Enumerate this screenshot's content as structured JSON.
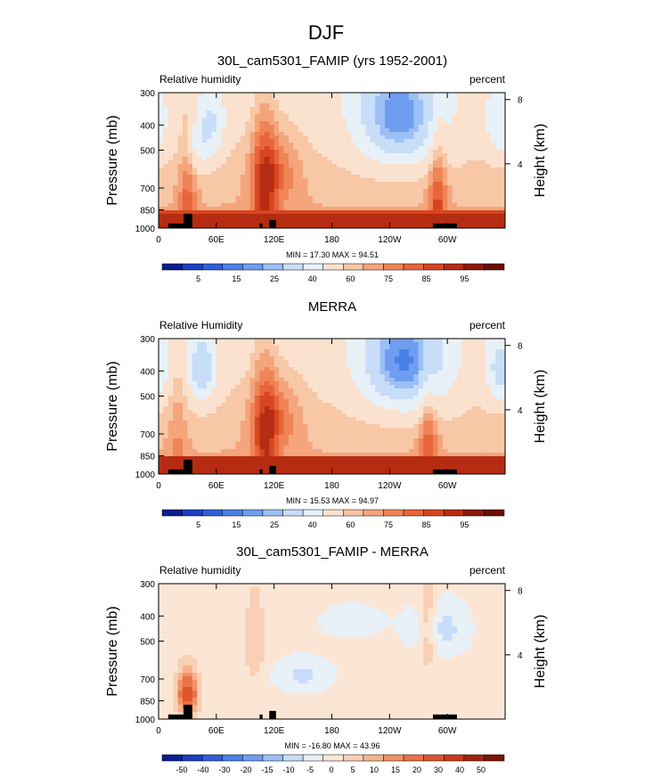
{
  "figure_title": "DJF",
  "colors": {
    "main_palette": [
      "#0a1f8f",
      "#1d3fc2",
      "#2f5fd8",
      "#4a80e6",
      "#6f9ef0",
      "#9cc0f6",
      "#c8ddf8",
      "#e8f0f8",
      "#fbe2cf",
      "#f8c7a6",
      "#f4a57c",
      "#ef8456",
      "#e8653a",
      "#d64620",
      "#b62c12",
      "#8c1a0a",
      "#6a0f06"
    ],
    "diff_palette": [
      "#0a1f8f",
      "#1d3fc2",
      "#2f5fd8",
      "#4a80e6",
      "#6f9ef0",
      "#9cc0f6",
      "#c8ddf8",
      "#e8f0f8",
      "#fbe6d6",
      "#f9d0b4",
      "#f6b28c",
      "#f19366",
      "#ea7246",
      "#de542c",
      "#c63a1a",
      "#a4240e",
      "#7c1408"
    ]
  },
  "chart_data": [
    {
      "type": "heatmap",
      "title": "30L_cam5301_FAMIP (yrs 1952-2001)",
      "left_label": "Relative humidity",
      "right_label": "percent",
      "xlabel": "",
      "ylabel": "Pressure (mb)",
      "y2label": "Height (km)",
      "x_ticks": [
        "0",
        "60E",
        "120E",
        "180",
        "120W",
        "60W"
      ],
      "x_tick_values": [
        0,
        60,
        120,
        180,
        240,
        300
      ],
      "xlim": [
        0,
        360
      ],
      "y_ticks": [
        "300",
        "400",
        "500",
        "700",
        "850",
        "1000"
      ],
      "y_tick_values": [
        300,
        400,
        500,
        700,
        850,
        1000
      ],
      "ylim": [
        1000,
        300
      ],
      "y2_ticks": [
        "8",
        "4"
      ],
      "min_max_label": "MIN =  17.30   MAX =  94.51",
      "min": 17.3,
      "max": 94.51,
      "colorbar_labels": [
        "5",
        "15",
        "25",
        "40",
        "60",
        "75",
        "85",
        "95"
      ],
      "levels": [
        5,
        10,
        15,
        20,
        25,
        30,
        40,
        50,
        60,
        65,
        70,
        75,
        80,
        85,
        90,
        95
      ],
      "palette_key": "main_palette",
      "features": {
        "low_humidity_core": {
          "lon": 250,
          "p": 400,
          "value": 18
        },
        "secondary_dry": [
          {
            "lon": 55,
            "p": 400,
            "value": 40
          },
          {
            "lon": 40,
            "p": 480,
            "value": 45
          },
          {
            "lon": 355,
            "p": 400,
            "value": 40
          }
        ],
        "moist_towers": [
          {
            "lon": 30,
            "value": 82
          },
          {
            "lon": 105,
            "value": 80
          },
          {
            "lon": 115,
            "value": 80
          },
          {
            "lon": 290,
            "value": 88
          }
        ],
        "boundary_layer_value": 88
      }
    },
    {
      "type": "heatmap",
      "title": "MERRA",
      "left_label": "Relative Humidity",
      "right_label": "percent",
      "xlabel": "",
      "ylabel": "Pressure (mb)",
      "y2label": "Height (km)",
      "x_ticks": [
        "0",
        "60E",
        "120E",
        "180",
        "120W",
        "60W"
      ],
      "x_tick_values": [
        0,
        60,
        120,
        180,
        240,
        300
      ],
      "xlim": [
        0,
        360
      ],
      "y_ticks": [
        "300",
        "400",
        "500",
        "700",
        "850",
        "1000"
      ],
      "y_tick_values": [
        300,
        400,
        500,
        700,
        850,
        1000
      ],
      "ylim": [
        1000,
        300
      ],
      "y2_ticks": [
        "8",
        "4"
      ],
      "min_max_label": "MIN =  15.53   MAX =  94.97",
      "min": 15.53,
      "max": 94.97,
      "colorbar_labels": [
        "5",
        "15",
        "25",
        "40",
        "60",
        "75",
        "85",
        "95"
      ],
      "levels": [
        5,
        10,
        15,
        20,
        25,
        30,
        40,
        50,
        60,
        65,
        70,
        75,
        80,
        85,
        90,
        95
      ],
      "palette_key": "main_palette",
      "features": {
        "low_humidity_core": {
          "lon": 255,
          "p": 400,
          "value": 16
        },
        "secondary_dry": [
          {
            "lon": 45,
            "p": 400,
            "value": 30
          },
          {
            "lon": 355,
            "p": 400,
            "value": 35
          }
        ],
        "moist_towers": [
          {
            "lon": 20,
            "value": 72
          },
          {
            "lon": 105,
            "value": 78
          },
          {
            "lon": 115,
            "value": 80
          },
          {
            "lon": 280,
            "value": 85
          }
        ],
        "boundary_layer_value": 90
      }
    },
    {
      "type": "heatmap",
      "title": "30L_cam5301_FAMIP - MERRA",
      "left_label": "Relative humidity",
      "right_label": "percent",
      "xlabel": "",
      "ylabel": "Pressure (mb)",
      "y2label": "Height (km)",
      "x_ticks": [
        "0",
        "60E",
        "120E",
        "180",
        "120W",
        "60W"
      ],
      "x_tick_values": [
        0,
        60,
        120,
        180,
        240,
        300
      ],
      "xlim": [
        0,
        360
      ],
      "y_ticks": [
        "300",
        "400",
        "500",
        "700",
        "850",
        "1000"
      ],
      "y_tick_values": [
        300,
        400,
        500,
        700,
        850,
        1000
      ],
      "ylim": [
        1000,
        300
      ],
      "y2_ticks": [
        "8",
        "4"
      ],
      "min_max_label": "MIN = -16.80   MAX =  43.96",
      "min": -16.8,
      "max": 43.96,
      "colorbar_labels": [
        "-50",
        "-40",
        "-30",
        "-20",
        "-15",
        "-10",
        "-5",
        "0",
        "5",
        "10",
        "15",
        "20",
        "30",
        "40",
        "50"
      ],
      "levels": [
        -50,
        -40,
        -30,
        -20,
        -15,
        -10,
        -5,
        0,
        5,
        10,
        15,
        20,
        30,
        40,
        50
      ],
      "palette_key": "diff_palette",
      "features": {
        "positive_bias": [
          {
            "lon": 30,
            "p": 800,
            "value": 40
          },
          {
            "lon": 280,
            "p": 450,
            "value": 15
          }
        ],
        "negative_bias": [
          {
            "lon": 290,
            "p": 450,
            "value": -10
          },
          {
            "lon": 150,
            "p": 680,
            "value": -8
          }
        ]
      }
    }
  ]
}
